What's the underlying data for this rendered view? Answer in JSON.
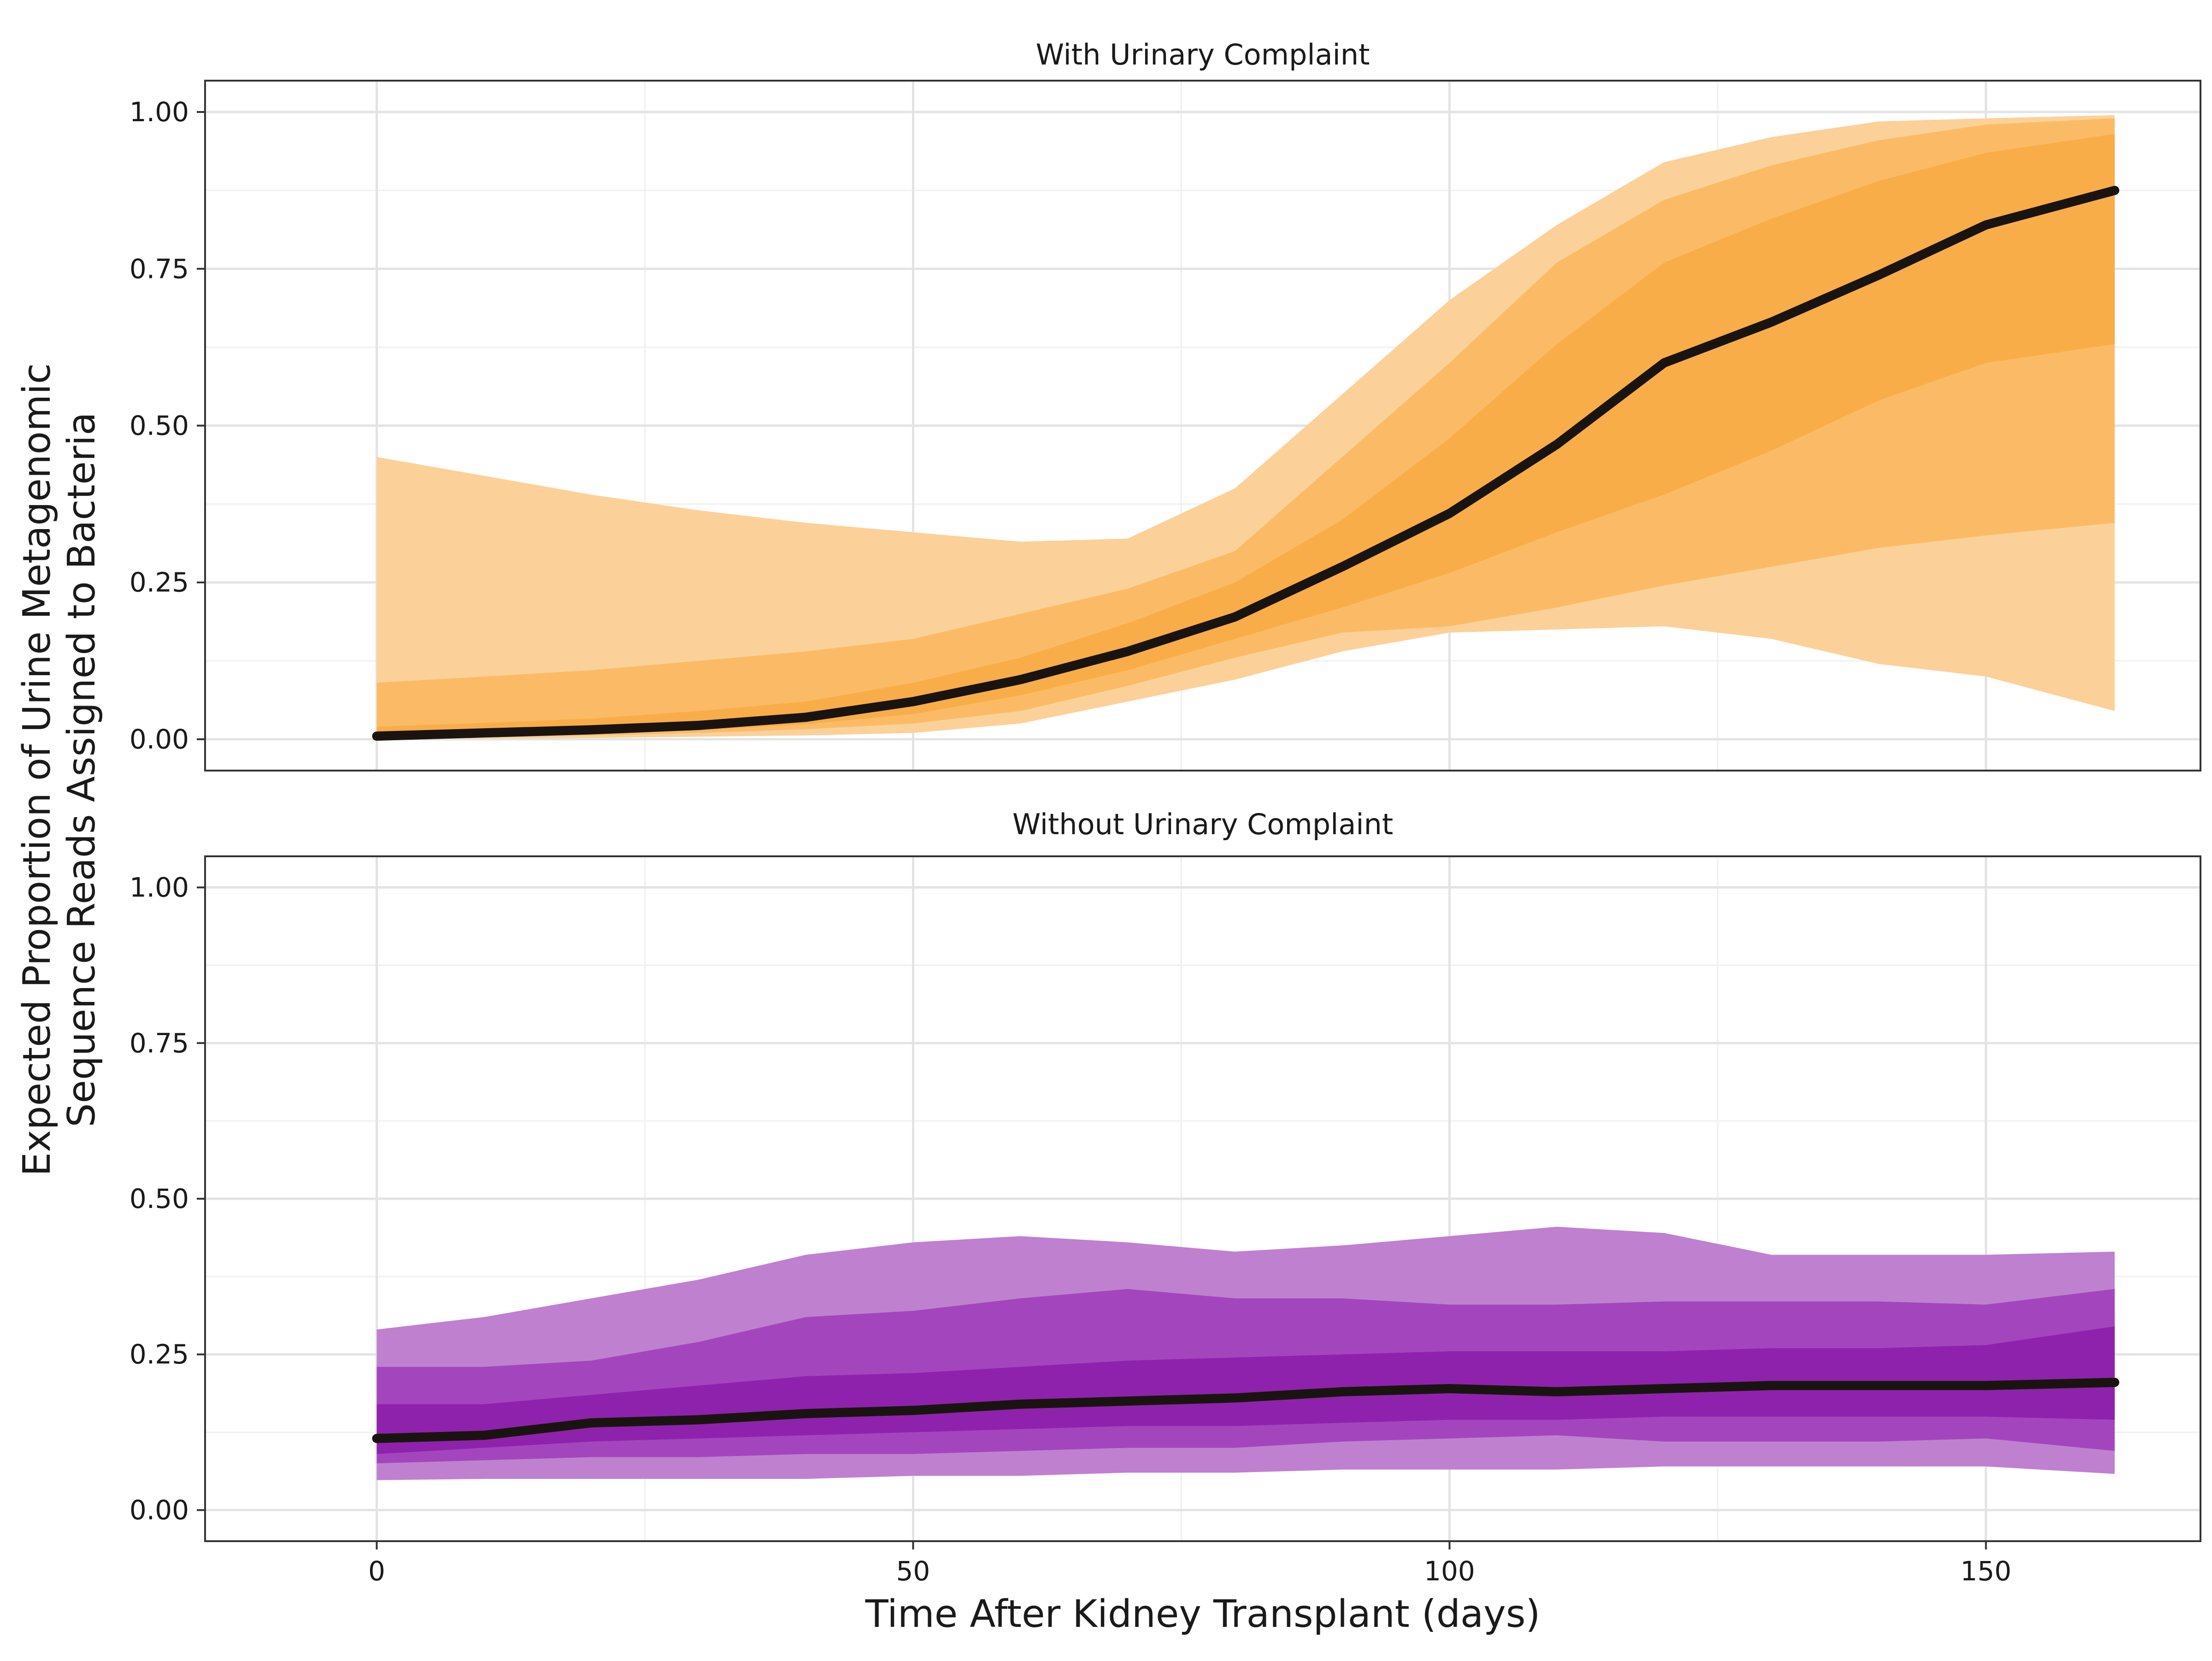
{
  "chart_data": {
    "type": "area",
    "xlabel": "Time After Kidney Transplant (days)",
    "ylabel_lines": [
      "Expected Proportion of Urine Metagenomic",
      "Sequence Reads Assigned to Bacteria"
    ],
    "xlim": [
      -16,
      170
    ],
    "ylim": [
      -0.05,
      1.05
    ],
    "x_ticks": [
      0,
      50,
      100,
      150
    ],
    "y_ticks": [
      0.0,
      0.25,
      0.5,
      0.75,
      1.0
    ],
    "y_tick_labels": [
      "0.00",
      "0.25",
      "0.50",
      "0.75",
      "1.00"
    ],
    "grid": true,
    "x": [
      0,
      10,
      20,
      30,
      40,
      50,
      60,
      70,
      80,
      90,
      100,
      110,
      120,
      130,
      140,
      150,
      162
    ],
    "panels": [
      {
        "title": "With Urinary Complaint",
        "colors": {
          "outer": "#fbd199",
          "middle": "#fbbb66",
          "inner": "#f9ad48",
          "median": "#1a1410"
        },
        "median": [
          0.005,
          0.01,
          0.015,
          0.022,
          0.035,
          0.06,
          0.095,
          0.14,
          0.195,
          0.275,
          0.36,
          0.47,
          0.6,
          0.665,
          0.74,
          0.82,
          0.875
        ],
        "bands": [
          {
            "name": "outer",
            "lower": [
              0.0,
              0.001,
              0.002,
              0.004,
              0.006,
              0.01,
              0.025,
              0.06,
              0.095,
              0.14,
              0.17,
              0.175,
              0.18,
              0.16,
              0.12,
              0.1,
              0.045
            ],
            "upper": [
              0.45,
              0.42,
              0.39,
              0.365,
              0.345,
              0.33,
              0.315,
              0.32,
              0.4,
              0.55,
              0.7,
              0.82,
              0.92,
              0.96,
              0.985,
              0.99,
              0.995
            ]
          },
          {
            "name": "middle",
            "lower": [
              0.0,
              0.003,
              0.006,
              0.01,
              0.016,
              0.025,
              0.045,
              0.085,
              0.13,
              0.17,
              0.18,
              0.21,
              0.245,
              0.275,
              0.305,
              0.325,
              0.345
            ],
            "upper": [
              0.09,
              0.1,
              0.11,
              0.125,
              0.14,
              0.16,
              0.2,
              0.24,
              0.3,
              0.45,
              0.6,
              0.76,
              0.86,
              0.915,
              0.955,
              0.98,
              0.99
            ]
          },
          {
            "name": "inner",
            "lower": [
              0.001,
              0.005,
              0.009,
              0.014,
              0.024,
              0.04,
              0.07,
              0.11,
              0.16,
              0.21,
              0.265,
              0.33,
              0.39,
              0.46,
              0.54,
              0.6,
              0.63
            ],
            "upper": [
              0.02,
              0.026,
              0.033,
              0.045,
              0.06,
              0.09,
              0.13,
              0.185,
              0.25,
              0.35,
              0.48,
              0.63,
              0.76,
              0.83,
              0.89,
              0.935,
              0.965
            ]
          }
        ]
      },
      {
        "title": "Without Urinary Complaint",
        "colors": {
          "outer": "#bf80d0",
          "middle": "#a346bd",
          "inner": "#8e22ad",
          "median": "#1a1410"
        },
        "median": [
          0.115,
          0.12,
          0.14,
          0.145,
          0.155,
          0.16,
          0.17,
          0.175,
          0.18,
          0.19,
          0.195,
          0.19,
          0.195,
          0.2,
          0.2,
          0.2,
          0.205
        ],
        "bands": [
          {
            "name": "outer",
            "lower": [
              0.048,
              0.05,
              0.05,
              0.05,
              0.05,
              0.055,
              0.055,
              0.06,
              0.06,
              0.065,
              0.065,
              0.065,
              0.07,
              0.07,
              0.07,
              0.07,
              0.058
            ],
            "upper": [
              0.29,
              0.31,
              0.34,
              0.37,
              0.41,
              0.43,
              0.44,
              0.43,
              0.415,
              0.425,
              0.44,
              0.455,
              0.445,
              0.41,
              0.41,
              0.41,
              0.415
            ]
          },
          {
            "name": "middle",
            "lower": [
              0.075,
              0.08,
              0.085,
              0.085,
              0.09,
              0.09,
              0.095,
              0.1,
              0.1,
              0.11,
              0.115,
              0.12,
              0.11,
              0.11,
              0.11,
              0.115,
              0.095
            ],
            "upper": [
              0.23,
              0.23,
              0.24,
              0.27,
              0.31,
              0.32,
              0.34,
              0.355,
              0.34,
              0.34,
              0.33,
              0.33,
              0.335,
              0.335,
              0.335,
              0.33,
              0.355
            ]
          },
          {
            "name": "inner",
            "lower": [
              0.09,
              0.1,
              0.11,
              0.115,
              0.12,
              0.125,
              0.13,
              0.135,
              0.135,
              0.14,
              0.145,
              0.145,
              0.15,
              0.15,
              0.15,
              0.15,
              0.145
            ],
            "upper": [
              0.17,
              0.17,
              0.185,
              0.2,
              0.215,
              0.22,
              0.23,
              0.24,
              0.245,
              0.25,
              0.255,
              0.255,
              0.255,
              0.26,
              0.26,
              0.265,
              0.295
            ]
          }
        ]
      }
    ]
  }
}
